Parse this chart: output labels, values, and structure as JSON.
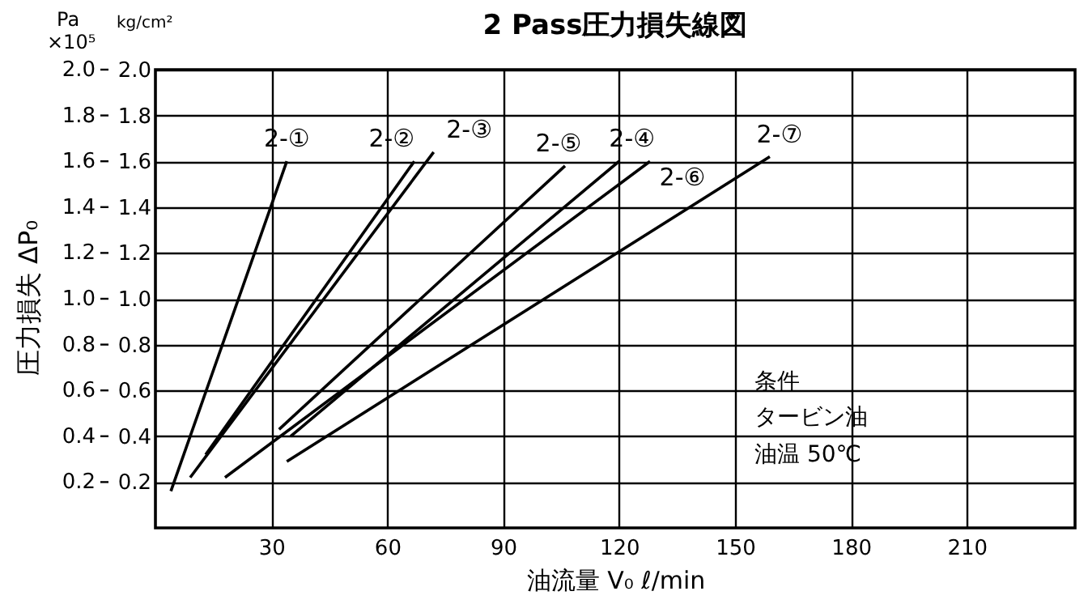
{
  "chart_data": {
    "type": "line",
    "title": "2 Pass圧力損失線図",
    "xlabel": "油流量 V₀  ℓ/min",
    "ylabel": "圧力損失 ΔP₀",
    "xlim": [
      0,
      238
    ],
    "xticks": [
      30,
      60,
      90,
      120,
      150,
      180,
      210
    ],
    "ylim": [
      0,
      2.0
    ],
    "yticks": [
      0.2,
      0.4,
      0.6,
      0.8,
      {
        "value": 1,
        "label": "1.0"
      },
      1.2,
      1.4,
      1.6,
      1.8,
      {
        "value": 2,
        "label": "2.0"
      }
    ],
    "y2lim": [
      0,
      2.0
    ],
    "y2ticks": [
      0.2,
      0.4,
      0.6,
      0.8,
      {
        "value": 1,
        "label": "1.0"
      },
      1.2,
      1.4,
      1.6,
      1.8,
      {
        "value": 2,
        "label": "2.0"
      }
    ],
    "grid": true,
    "legend": false,
    "marker": "none",
    "line_style": "solid",
    "annotations": [
      "Pa",
      "×10⁵",
      "kg/cm²",
      "条件",
      "タービン油",
      "油温  50℃"
    ],
    "series": [
      {
        "name": "2-①",
        "color": "#000000",
        "x": [
          4,
          34
        ],
        "values": [
          0.16,
          1.6
        ]
      },
      {
        "name": "2-②",
        "color": "#000000",
        "x": [
          13,
          67
        ],
        "values": [
          0.32,
          1.6
        ]
      },
      {
        "name": "2-③",
        "color": "#000000",
        "x": [
          9,
          72
        ],
        "values": [
          0.22,
          1.64
        ]
      },
      {
        "name": "2-④",
        "color": "#000000",
        "x": [
          35,
          120
        ],
        "values": [
          0.4,
          1.6
        ]
      },
      {
        "name": "2-⑤",
        "color": "#000000",
        "x": [
          32,
          106
        ],
        "values": [
          0.43,
          1.58
        ]
      },
      {
        "name": "2-⑥",
        "color": "#000000",
        "x": [
          18,
          128
        ],
        "values": [
          0.22,
          1.6
        ]
      },
      {
        "name": "2-⑦",
        "color": "#000000",
        "x": [
          34,
          159
        ],
        "values": [
          0.29,
          1.62
        ]
      }
    ]
  }
}
